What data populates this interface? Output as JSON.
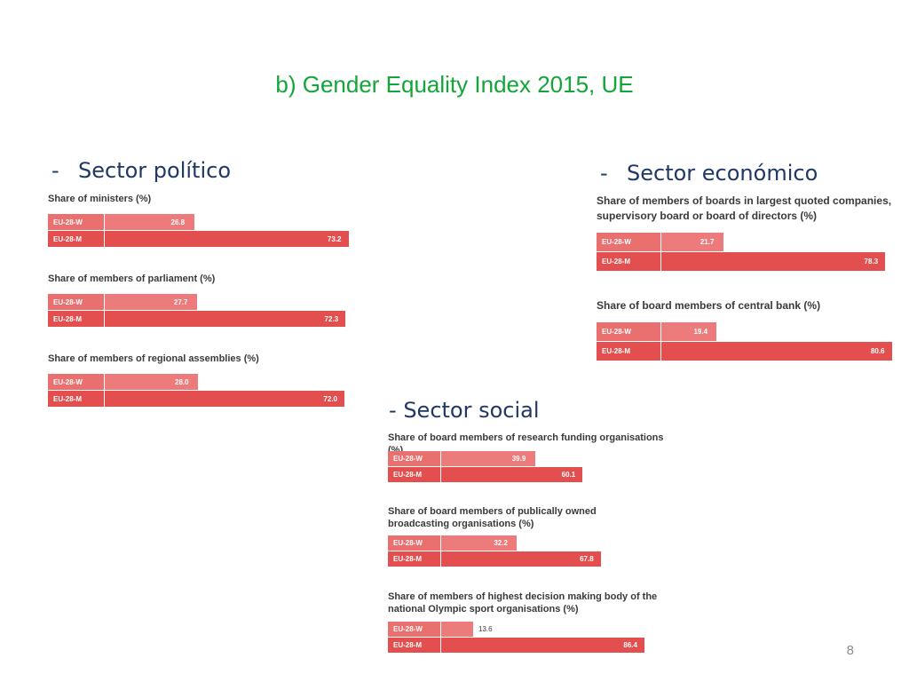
{
  "slide": {
    "title": "b) Gender Equality Index 2015, UE",
    "page_number": "8"
  },
  "sections": [
    {
      "dash": "-",
      "label": "Sector político"
    },
    {
      "dash": "-",
      "label": "Sector económico"
    },
    {
      "dash": "-",
      "label": "Sector social"
    }
  ],
  "colors": {
    "women_bar": "#ee7b7b",
    "men_bar": "#e34e4e",
    "title_green": "#13a538",
    "heading_blue": "#1f3864"
  },
  "chart_data": [
    {
      "type": "bar",
      "section": "Sector político",
      "title": "Share of ministers (%)",
      "categories": [
        "EU-28-W",
        "EU-28-M"
      ],
      "values": [
        26.8,
        73.2
      ],
      "labels": [
        "26.8",
        "73.2"
      ],
      "xlim": [
        0,
        100
      ]
    },
    {
      "type": "bar",
      "section": "Sector político",
      "title": "Share of members of parliament (%)",
      "categories": [
        "EU-28-W",
        "EU-28-M"
      ],
      "values": [
        27.7,
        72.3
      ],
      "labels": [
        "27.7",
        "72.3"
      ],
      "xlim": [
        0,
        100
      ]
    },
    {
      "type": "bar",
      "section": "Sector político",
      "title": "Share of members of regional assemblies (%)",
      "categories": [
        "EU-28-W",
        "EU-28-M"
      ],
      "values": [
        28.0,
        72.0
      ],
      "labels": [
        "28.0",
        "72.0"
      ],
      "xlim": [
        0,
        100
      ]
    },
    {
      "type": "bar",
      "section": "Sector económico",
      "title": "Share of members of boards in largest quoted companies, supervisory board or board of directors (%)",
      "categories": [
        "EU-28-W",
        "EU-28-M"
      ],
      "values": [
        21.7,
        78.3
      ],
      "labels": [
        "21.7",
        "78.3"
      ],
      "xlim": [
        0,
        100
      ]
    },
    {
      "type": "bar",
      "section": "Sector económico",
      "title": "Share of board members of central bank (%)",
      "categories": [
        "EU-28-W",
        "EU-28-M"
      ],
      "values": [
        19.4,
        80.6
      ],
      "labels": [
        "19.4",
        "80.6"
      ],
      "xlim": [
        0,
        100
      ]
    },
    {
      "type": "bar",
      "section": "Sector social",
      "title": "Share of board members of research funding organisations (%)",
      "categories": [
        "EU-28-W",
        "EU-28-M"
      ],
      "values": [
        39.9,
        60.1
      ],
      "labels": [
        "39.9",
        "60.1"
      ],
      "xlim": [
        0,
        100
      ]
    },
    {
      "type": "bar",
      "section": "Sector social",
      "title": "Share of board members of publically owned broadcasting organisations (%)",
      "categories": [
        "EU-28-W",
        "EU-28-M"
      ],
      "values": [
        32.2,
        67.8
      ],
      "labels": [
        "32.2",
        "67.8"
      ],
      "xlim": [
        0,
        100
      ]
    },
    {
      "type": "bar",
      "section": "Sector social",
      "title": "Share of members of highest decision making body of the national Olympic sport organisations (%)",
      "categories": [
        "EU-28-W",
        "EU-28-M"
      ],
      "values": [
        13.6,
        86.4
      ],
      "labels": [
        "13.6",
        "86.4"
      ],
      "xlim": [
        0,
        100
      ]
    }
  ]
}
